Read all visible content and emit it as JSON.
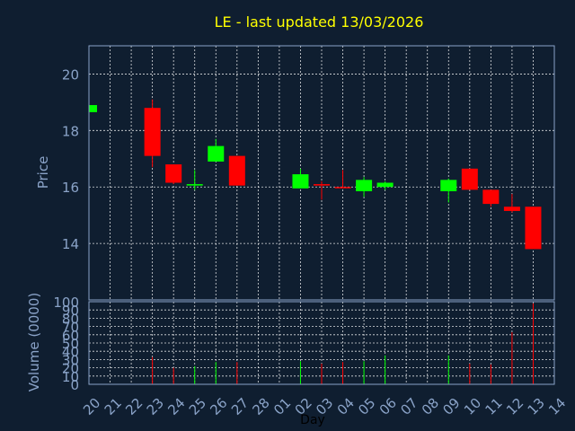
{
  "chart_data": {
    "type": "candlestick",
    "title": "LE - last updated 13/03/2026",
    "xlabel": "Day",
    "ylabel_price": "Price",
    "ylabel_volume": "Volume (0000)",
    "price_ylim": [
      12.0,
      21.0
    ],
    "price_ticks": [
      14,
      16,
      18,
      20
    ],
    "volume_ylim": [
      0,
      100
    ],
    "volume_ticks": [
      0,
      10,
      20,
      30,
      40,
      50,
      60,
      70,
      80,
      90,
      100
    ],
    "volume_tick_labels": [
      "0",
      "10",
      "20",
      "30",
      "40",
      "50",
      "60",
      "70",
      "80",
      "90",
      "100"
    ],
    "grid": true,
    "colors": {
      "up": "#00ff00",
      "down": "#ff0000",
      "background": "#0f1e30",
      "title": "#ffff00",
      "axis": "#8aa3c8"
    },
    "x_labels": [
      "20",
      "21",
      "22",
      "23",
      "24",
      "25",
      "26",
      "27",
      "28",
      "01",
      "02",
      "03",
      "04",
      "05",
      "06",
      "07",
      "08",
      "09",
      "10",
      "11",
      "12",
      "13",
      "14"
    ],
    "candles": [
      {
        "x": "20",
        "open": 18.65,
        "high": 18.9,
        "low": 18.65,
        "close": 18.9,
        "volume": 0
      },
      {
        "x": "23",
        "open": 18.8,
        "high": 19.1,
        "low": 16.7,
        "close": 17.1,
        "volume": 33
      },
      {
        "x": "24",
        "open": 16.8,
        "high": 16.8,
        "low": 16.1,
        "close": 16.15,
        "volume": 20
      },
      {
        "x": "25",
        "open": 16.05,
        "high": 16.6,
        "low": 15.9,
        "close": 16.1,
        "volume": 22
      },
      {
        "x": "26",
        "open": 16.9,
        "high": 17.7,
        "low": 16.9,
        "close": 17.45,
        "volume": 27
      },
      {
        "x": "27",
        "open": 17.1,
        "high": 17.1,
        "low": 16.05,
        "close": 16.05,
        "volume": 27
      },
      {
        "x": "02",
        "open": 15.95,
        "high": 16.65,
        "low": 15.95,
        "close": 16.45,
        "volume": 28
      },
      {
        "x": "03",
        "open": 16.1,
        "high": 16.2,
        "low": 15.55,
        "close": 16.05,
        "volume": 25
      },
      {
        "x": "04",
        "open": 16.0,
        "high": 16.6,
        "low": 15.95,
        "close": 15.98,
        "volume": 27
      },
      {
        "x": "05",
        "open": 15.85,
        "high": 16.35,
        "low": 15.65,
        "close": 16.25,
        "volume": 28
      },
      {
        "x": "06",
        "open": 16.0,
        "high": 16.2,
        "low": 15.9,
        "close": 16.15,
        "volume": 35
      },
      {
        "x": "09",
        "open": 15.85,
        "high": 16.3,
        "low": 15.45,
        "close": 16.25,
        "volume": 35
      },
      {
        "x": "10",
        "open": 16.65,
        "high": 16.65,
        "low": 15.9,
        "close": 15.9,
        "volume": 25
      },
      {
        "x": "11",
        "open": 15.9,
        "high": 15.9,
        "low": 15.3,
        "close": 15.4,
        "volume": 24
      },
      {
        "x": "12",
        "open": 15.3,
        "high": 15.75,
        "low": 15.1,
        "close": 15.15,
        "volume": 63
      },
      {
        "x": "13",
        "open": 15.3,
        "high": 15.3,
        "low": 13.8,
        "close": 13.8,
        "volume": 98
      }
    ]
  }
}
